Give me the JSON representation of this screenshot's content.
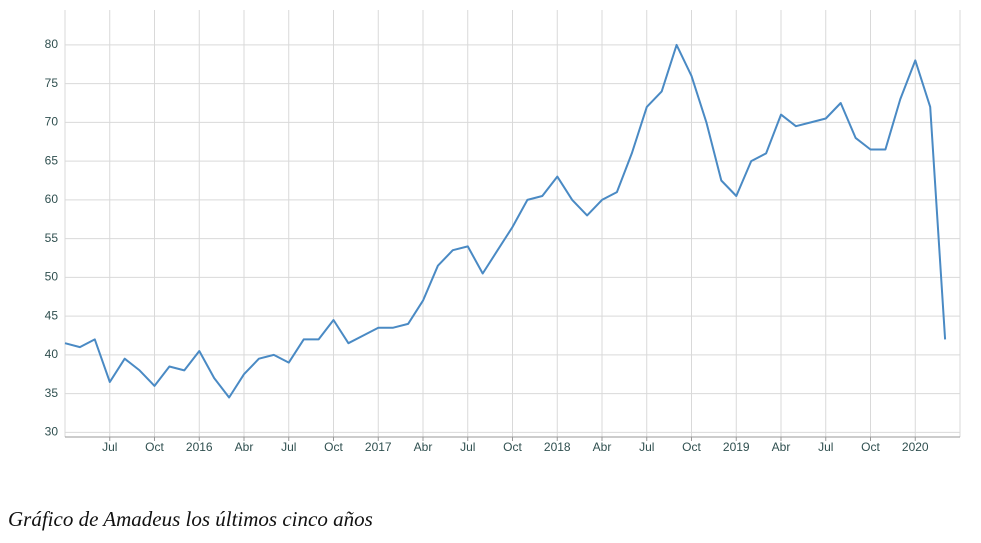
{
  "chart_data": {
    "type": "line",
    "caption": "Gráfico de Amadeus los últimos cinco años",
    "x": [
      "2015-04",
      "2015-05",
      "2015-06",
      "2015-07",
      "2015-08",
      "2015-09",
      "2015-10",
      "2015-11",
      "2015-12",
      "2016-01",
      "2016-02",
      "2016-03",
      "2016-04",
      "2016-05",
      "2016-06",
      "2016-07",
      "2016-08",
      "2016-09",
      "2016-10",
      "2016-11",
      "2016-12",
      "2017-01",
      "2017-02",
      "2017-03",
      "2017-04",
      "2017-05",
      "2017-06",
      "2017-07",
      "2017-08",
      "2017-09",
      "2017-10",
      "2017-11",
      "2017-12",
      "2018-01",
      "2018-02",
      "2018-03",
      "2018-04",
      "2018-05",
      "2018-06",
      "2018-07",
      "2018-08",
      "2018-09",
      "2018-10",
      "2018-11",
      "2018-12",
      "2019-01",
      "2019-02",
      "2019-03",
      "2019-04",
      "2019-05",
      "2019-06",
      "2019-07",
      "2019-08",
      "2019-09",
      "2019-10",
      "2019-11",
      "2019-12",
      "2020-01",
      "2020-02",
      "2020-03"
    ],
    "series": [
      {
        "color": "#4a8ac4",
        "values": [
          41.5,
          41,
          42,
          36.5,
          39.5,
          38,
          36,
          38.5,
          38,
          40.5,
          37,
          34.5,
          37.5,
          39.5,
          40,
          39,
          42,
          42,
          44.5,
          41.5,
          42.5,
          43.5,
          43.5,
          44,
          47,
          51.5,
          53.5,
          54,
          50.5,
          53.5,
          56.5,
          60,
          60.5,
          63,
          60,
          58,
          60,
          61,
          66,
          72,
          74,
          80,
          76,
          70,
          62.5,
          60.5,
          65,
          66,
          71,
          69.5,
          70,
          70.5,
          72.5,
          68,
          66.5,
          66.5,
          73,
          78,
          72,
          42
        ]
      }
    ],
    "xlim": [
      "2015-04",
      "2020-04"
    ],
    "xticks": [
      {
        "value": "2015-07",
        "label": "Jul"
      },
      {
        "value": "2015-10",
        "label": "Oct"
      },
      {
        "value": "2016-01",
        "label": "2016"
      },
      {
        "value": "2016-04",
        "label": "Abr"
      },
      {
        "value": "2016-07",
        "label": "Jul"
      },
      {
        "value": "2016-10",
        "label": "Oct"
      },
      {
        "value": "2017-01",
        "label": "2017"
      },
      {
        "value": "2017-04",
        "label": "Abr"
      },
      {
        "value": "2017-07",
        "label": "Jul"
      },
      {
        "value": "2017-10",
        "label": "Oct"
      },
      {
        "value": "2018-01",
        "label": "2018"
      },
      {
        "value": "2018-04",
        "label": "Abr"
      },
      {
        "value": "2018-07",
        "label": "Jul"
      },
      {
        "value": "2018-10",
        "label": "Oct"
      },
      {
        "value": "2019-01",
        "label": "2019"
      },
      {
        "value": "2019-04",
        "label": "Abr"
      },
      {
        "value": "2019-07",
        "label": "Jul"
      },
      {
        "value": "2019-10",
        "label": "Oct"
      },
      {
        "value": "2020-01",
        "label": "2020"
      }
    ],
    "ylim": [
      29.4,
      84.5
    ],
    "yticks": [
      30,
      35,
      40,
      45,
      50,
      55,
      60,
      65,
      70,
      75,
      80
    ],
    "grid": true
  }
}
